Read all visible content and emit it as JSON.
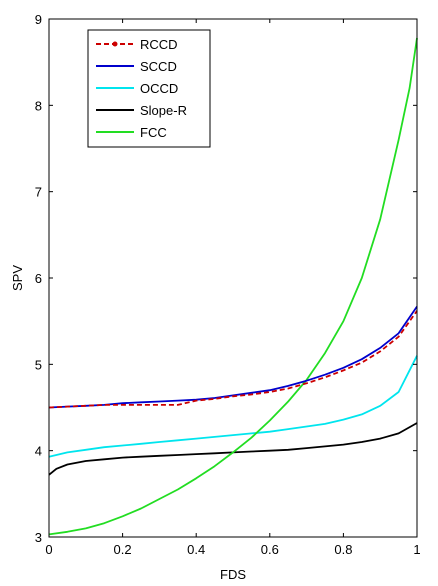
{
  "chart_data": {
    "type": "line",
    "title": "",
    "xlabel": "FDS",
    "ylabel": "SPV",
    "xlim": [
      0,
      1
    ],
    "ylim": [
      3,
      9
    ],
    "xticks": [
      "0",
      "0.2",
      "0.4",
      "0.6",
      "0.8",
      "1"
    ],
    "yticks": [
      "3",
      "4",
      "5",
      "6",
      "7",
      "8",
      "9"
    ],
    "grid": false,
    "legend_position": "top-left",
    "series": [
      {
        "name": "RCCD",
        "color": "#cc0000",
        "style": "dashed-dot",
        "x": [
          0,
          0.05,
          0.1,
          0.15,
          0.2,
          0.25,
          0.3,
          0.35,
          0.4,
          0.45,
          0.5,
          0.55,
          0.6,
          0.65,
          0.7,
          0.75,
          0.8,
          0.85,
          0.9,
          0.95,
          1.0
        ],
        "y": [
          4.5,
          4.51,
          4.52,
          4.53,
          4.53,
          4.53,
          4.53,
          4.53,
          4.58,
          4.6,
          4.63,
          4.65,
          4.68,
          4.72,
          4.78,
          4.85,
          4.93,
          5.02,
          5.15,
          5.32,
          5.62
        ]
      },
      {
        "name": "SCCD",
        "color": "#0000cc",
        "style": "solid",
        "x": [
          0,
          0.05,
          0.1,
          0.15,
          0.2,
          0.25,
          0.3,
          0.35,
          0.4,
          0.45,
          0.5,
          0.55,
          0.6,
          0.65,
          0.7,
          0.75,
          0.8,
          0.85,
          0.9,
          0.95,
          1.0
        ],
        "y": [
          4.5,
          4.51,
          4.52,
          4.53,
          4.55,
          4.56,
          4.57,
          4.58,
          4.59,
          4.61,
          4.64,
          4.67,
          4.7,
          4.75,
          4.81,
          4.88,
          4.96,
          5.06,
          5.19,
          5.36,
          5.67
        ]
      },
      {
        "name": "OCCD",
        "color": "#00e5ee",
        "style": "solid",
        "x": [
          0,
          0.05,
          0.1,
          0.15,
          0.2,
          0.25,
          0.3,
          0.35,
          0.4,
          0.45,
          0.5,
          0.55,
          0.6,
          0.65,
          0.7,
          0.75,
          0.8,
          0.85,
          0.9,
          0.95,
          1.0
        ],
        "y": [
          3.93,
          3.98,
          4.01,
          4.04,
          4.06,
          4.08,
          4.1,
          4.12,
          4.14,
          4.16,
          4.18,
          4.2,
          4.22,
          4.25,
          4.28,
          4.31,
          4.36,
          4.42,
          4.52,
          4.68,
          5.1
        ]
      },
      {
        "name": "Slope-R",
        "color": "#000000",
        "style": "solid",
        "x": [
          0,
          0.02,
          0.05,
          0.1,
          0.15,
          0.2,
          0.25,
          0.3,
          0.35,
          0.4,
          0.45,
          0.5,
          0.55,
          0.6,
          0.65,
          0.7,
          0.75,
          0.8,
          0.85,
          0.9,
          0.95,
          1.0
        ],
        "y": [
          3.72,
          3.79,
          3.84,
          3.88,
          3.9,
          3.92,
          3.93,
          3.94,
          3.95,
          3.96,
          3.97,
          3.98,
          3.99,
          4.0,
          4.01,
          4.03,
          4.05,
          4.07,
          4.1,
          4.14,
          4.2,
          4.32
        ]
      },
      {
        "name": "FCC",
        "color": "#22dd22",
        "style": "solid",
        "x": [
          0,
          0.05,
          0.1,
          0.15,
          0.2,
          0.25,
          0.3,
          0.35,
          0.4,
          0.45,
          0.5,
          0.55,
          0.6,
          0.65,
          0.7,
          0.75,
          0.8,
          0.85,
          0.9,
          0.95,
          0.98,
          1.0
        ],
        "y": [
          3.03,
          3.06,
          3.1,
          3.16,
          3.24,
          3.33,
          3.44,
          3.55,
          3.68,
          3.82,
          3.98,
          4.15,
          4.35,
          4.57,
          4.82,
          5.13,
          5.5,
          6.0,
          6.68,
          7.6,
          8.2,
          8.78
        ]
      }
    ]
  }
}
